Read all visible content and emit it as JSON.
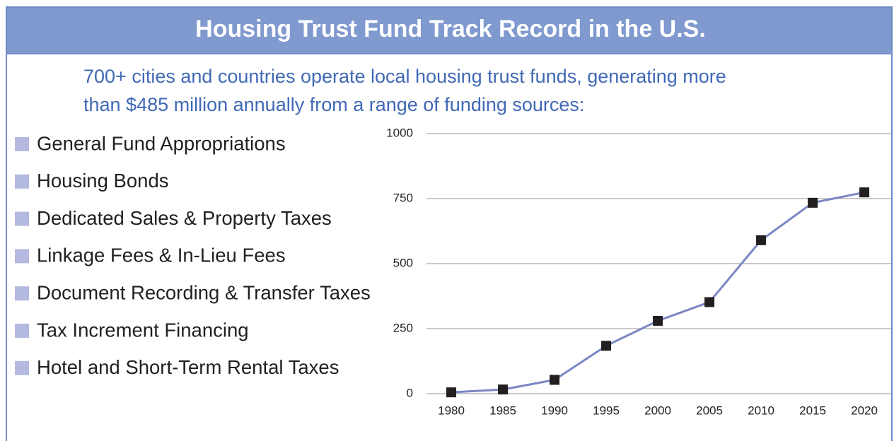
{
  "chart_data": {
    "type": "line",
    "title": "Housing Trust Fund Track Record in the U.S.",
    "subtitle": [
      "700+ cities and countries operate local housing trust funds, generating more",
      "than $485 million annually from a range of funding sources:"
    ],
    "annotations": [
      "General Fund Appropriations",
      "Housing Bonds",
      "Dedicated Sales & Property Taxes",
      "Linkage Fees & In-Lieu Fees",
      "Document Recording & Transfer Taxes",
      "Tax Increment Financing",
      "Hotel and Short-Term Rental Taxes"
    ],
    "x": [
      1980,
      1985,
      1990,
      1995,
      2000,
      2005,
      2010,
      2015,
      2020
    ],
    "values": [
      5,
      16,
      53,
      184,
      280,
      352,
      590,
      734,
      774
    ],
    "color": "#7b86c4",
    "marker_color": "#231f20",
    "xlim": [
      1977.6,
      2022.6
    ],
    "xticks": [
      1980,
      1985,
      1990,
      1995,
      2000,
      2005,
      2010,
      2015,
      2020
    ],
    "ylim": [
      0,
      1000
    ],
    "yticks": [
      0,
      250,
      500,
      750,
      1000
    ],
    "grid": true
  }
}
